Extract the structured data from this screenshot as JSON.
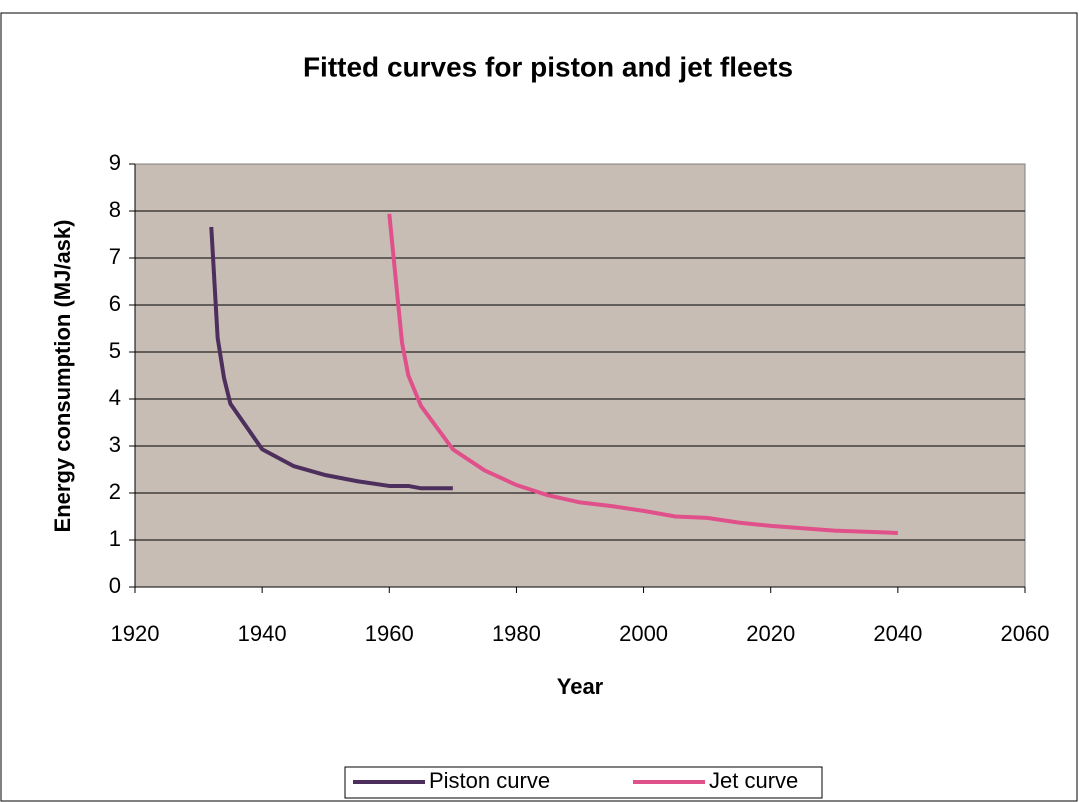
{
  "chart_data": {
    "type": "line",
    "title": "Fitted curves for piston and jet fleets",
    "x_label": "Year",
    "y_label": "Energy consumption (MJ/ask)",
    "xlim": [
      1920,
      2060
    ],
    "xticks": [
      1920,
      1940,
      1960,
      1980,
      2000,
      2020,
      2040,
      2060
    ],
    "ylim": [
      0,
      9
    ],
    "yticks": [
      0,
      1,
      2,
      3,
      4,
      5,
      6,
      7,
      8,
      9
    ],
    "grid": true,
    "legend": "bottom",
    "series": [
      {
        "name": "Piston curve",
        "color": "#4d2f5d",
        "x": [
          1932,
          1933,
          1934,
          1935,
          1940,
          1945,
          1950,
          1955,
          1960,
          1963,
          1965,
          1970
        ],
        "values": [
          7.66,
          5.3,
          4.45,
          3.9,
          2.93,
          2.57,
          2.38,
          2.25,
          2.15,
          2.15,
          2.1,
          2.1
        ]
      },
      {
        "name": "Jet curve",
        "color": "#e0508a",
        "x": [
          1960,
          1962,
          1963,
          1965,
          1970,
          1975,
          1980,
          1985,
          1990,
          1995,
          2000,
          2005,
          2010,
          2015,
          2020,
          2030,
          2040
        ],
        "values": [
          7.94,
          5.2,
          4.5,
          3.85,
          2.93,
          2.48,
          2.17,
          1.95,
          1.8,
          1.72,
          1.62,
          1.5,
          1.47,
          1.37,
          1.3,
          1.2,
          1.15
        ]
      }
    ]
  }
}
